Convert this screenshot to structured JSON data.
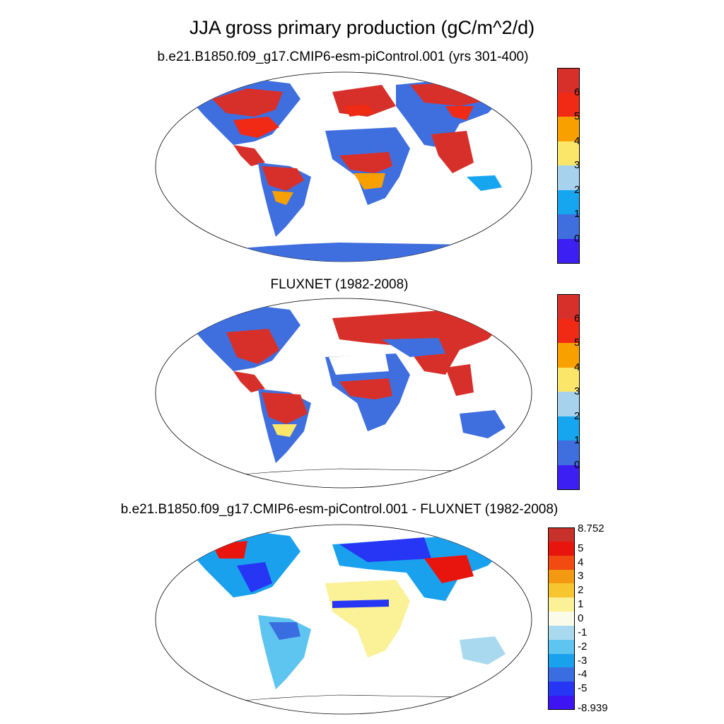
{
  "title": "JJA gross primary production (gC/m^2/d)",
  "panels": [
    {
      "id": "model",
      "title": "b.e21.B1850.f09_g17.CMIP6-esm-piControl.001 (yrs 301-400)"
    },
    {
      "id": "obs",
      "title": "FLUXNET (1982-2008)"
    },
    {
      "id": "diff",
      "title": "b.e21.B1850.f09_g17.CMIP6-esm-piControl.001 - FLUXNET (1982-2008)"
    }
  ],
  "colorbars": {
    "absolute": {
      "labels": [
        "6",
        "5",
        "4",
        "3",
        "2",
        "1",
        "0"
      ],
      "colors": [
        "#d7302a",
        "#f02a14",
        "#f7a000",
        "#fce66a",
        "#a6d2ee",
        "#16a6f0",
        "#3f6fde",
        "#3c1ff2"
      ]
    },
    "difference": {
      "labels": [
        "8.752",
        "5",
        "4",
        "3",
        "2",
        "1",
        "0",
        "-1",
        "-2",
        "-3",
        "-4",
        "-5",
        "-8.939"
      ],
      "colors": [
        "#c8302a",
        "#e8150e",
        "#f24b12",
        "#f39a12",
        "#f7c530",
        "#fbf196",
        "#fbfbea",
        "#a9d9ee",
        "#5ec4f0",
        "#1aa1ee",
        "#3a6ee0",
        "#2636f4",
        "#3d14f2"
      ]
    }
  }
}
